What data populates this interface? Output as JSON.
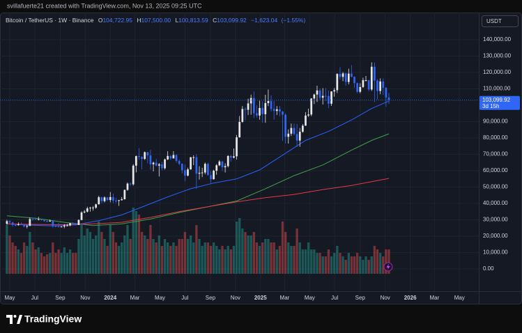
{
  "chart_data": {
    "type": "candlestick",
    "header": "svillafuerte21 created with TradingView.com, Nov 13, 2025 09:25 UTC",
    "legend": {
      "symbol": "Bitcoin / TetherUS · 1W · Binance",
      "fields": [
        {
          "key": "O",
          "value": 104722.95,
          "label": "104,722.95"
        },
        {
          "key": "H",
          "value": 107500,
          "label": "107,500.00"
        },
        {
          "key": "L",
          "value": 100813.59,
          "label": "100,813.59"
        },
        {
          "key": "C",
          "value": 103099.92,
          "label": "103,099.92"
        }
      ],
      "change": {
        "value": -1623.04,
        "label": "−1,623.04"
      },
      "change_percent": {
        "value": -1.55,
        "label": "(−1.55%)"
      }
    },
    "currency": "USDT",
    "brand": "TradingView",
    "up_color": "#e8e8e8",
    "down_color": "#2f66f5",
    "x": [
      0,
      1,
      2,
      3,
      4,
      5,
      6,
      7,
      8,
      9,
      10,
      11,
      12,
      13,
      14,
      15,
      16,
      17,
      18,
      19,
      20,
      21,
      22,
      23,
      24,
      25,
      26,
      27,
      28,
      29,
      30,
      31,
      32,
      33,
      34,
      35,
      36,
      37,
      38,
      39,
      40,
      41,
      42,
      43,
      44,
      45,
      46,
      47,
      48,
      49,
      50,
      51,
      52,
      53,
      54,
      55,
      56,
      57,
      58,
      59,
      60,
      61,
      62,
      63,
      64,
      65,
      66,
      67,
      68,
      69,
      70,
      71,
      72,
      73,
      74,
      75,
      76,
      77,
      78,
      79,
      80,
      81,
      82,
      83,
      84,
      85,
      86,
      87,
      88,
      89,
      90,
      91,
      92,
      93,
      94,
      95,
      96,
      97,
      98,
      99,
      100,
      101,
      102,
      103,
      104,
      105,
      106,
      107,
      108,
      109,
      110,
      111,
      112,
      113,
      114,
      115,
      116,
      117,
      118,
      119,
      120,
      121,
      122,
      123,
      124,
      125,
      126,
      127,
      128,
      129,
      130,
      131,
      132,
      133
    ],
    "open": [
      27600,
      29200,
      28400,
      26900,
      26750,
      27200,
      27100,
      25900,
      26300,
      30500,
      30450,
      30150,
      30300,
      29900,
      29200,
      29050,
      29400,
      26100,
      26000,
      25800,
      25900,
      26500,
      26550,
      27950,
      27900,
      26850,
      29900,
      34500,
      35000,
      37000,
      37400,
      37450,
      39450,
      43800,
      41400,
      43700,
      42100,
      43900,
      41700,
      41600,
      42000,
      42600,
      48300,
      52100,
      51700,
      63100,
      68900,
      68400,
      67200,
      71300,
      69300,
      63900,
      64900,
      63100,
      63900,
      61500,
      66900,
      69000,
      67500,
      69600,
      66000,
      64200,
      60300,
      57000,
      60800,
      68200,
      68200,
      58200,
      58700,
      58900,
      64200,
      57300,
      54800,
      60000,
      63300,
      65600,
      62100,
      62800,
      69000,
      68000,
      68800,
      80400,
      89800,
      97700,
      97200,
      101100,
      104400,
      95100,
      93700,
      98300,
      94500,
      101300,
      102600,
      97700,
      96500,
      97500,
      96100,
      94200,
      80700,
      82600,
      86100,
      82400,
      78400,
      83800,
      87500,
      93700,
      94300,
      104100,
      106500,
      109000,
      104600,
      105700,
      105600,
      100900,
      108400,
      109200,
      119100,
      117300,
      119400,
      114200,
      119300,
      117400,
      113500,
      108200,
      111100,
      115300,
      115300,
      109600,
      123500,
      115100,
      108700,
      114500,
      110600,
      104722.95
    ],
    "high": [
      30000,
      29800,
      28800,
      27500,
      28400,
      28400,
      27400,
      26800,
      31400,
      31300,
      31400,
      31800,
      30400,
      30000,
      29700,
      30200,
      29700,
      26800,
      28100,
      26100,
      27400,
      27500,
      28000,
      28600,
      28000,
      30300,
      35200,
      36000,
      38000,
      38000,
      38400,
      39800,
      44700,
      44000,
      44300,
      44000,
      47000,
      46000,
      43500,
      42200,
      43900,
      48500,
      52800,
      52900,
      64000,
      69200,
      73800,
      68900,
      71700,
      71400,
      72800,
      65500,
      67200,
      64700,
      65500,
      67400,
      71900,
      69500,
      71900,
      70000,
      66800,
      64500,
      63800,
      61800,
      68400,
      69400,
      70000,
      62700,
      61800,
      65000,
      64900,
      59800,
      60600,
      64000,
      66500,
      66000,
      64500,
      69400,
      69500,
      73600,
      81800,
      93400,
      99500,
      98800,
      104000,
      106500,
      108300,
      99900,
      102700,
      102300,
      106400,
      109600,
      106000,
      102500,
      99500,
      99500,
      96500,
      95000,
      85200,
      88800,
      88800,
      88500,
      86100,
      88500,
      95800,
      97900,
      104300,
      107100,
      111900,
      110200,
      110400,
      110500,
      108900,
      108500,
      110500,
      119500,
      123200,
      120200,
      119800,
      122300,
      124500,
      117600,
      113900,
      113400,
      116800,
      117900,
      115500,
      126200,
      126100,
      116000,
      116400,
      116400,
      111000,
      107500
    ],
    "low": [
      27000,
      27600,
      25800,
      26100,
      26500,
      26900,
      25400,
      24800,
      26200,
      29500,
      29900,
      29700,
      29500,
      28900,
      28600,
      28800,
      25200,
      25800,
      25400,
      25400,
      24900,
      26100,
      26000,
      27200,
      26500,
      26800,
      29700,
      34000,
      34500,
      35000,
      35600,
      36700,
      39400,
      40200,
      40600,
      41400,
      40700,
      40200,
      40300,
      38500,
      41800,
      42300,
      47700,
      50700,
      50900,
      59000,
      66700,
      60800,
      66600,
      64500,
      60700,
      59600,
      62700,
      56500,
      60200,
      60700,
      66500,
      66600,
      67500,
      64900,
      63400,
      58400,
      53500,
      56500,
      60600,
      63400,
      49000,
      54600,
      56100,
      57800,
      57200,
      52500,
      54600,
      57500,
      62700,
      59800,
      58900,
      62000,
      65500,
      67500,
      66800,
      80200,
      89300,
      90800,
      94000,
      94200,
      92200,
      92400,
      91200,
      89300,
      89300,
      99500,
      96100,
      91200,
      94000,
      93300,
      78200,
      76600,
      76600,
      81200,
      81600,
      74500,
      74600,
      83200,
      87400,
      92800,
      93300,
      100700,
      102000,
      103000,
      100400,
      102600,
      98200,
      99600,
      105200,
      107500,
      115700,
      114700,
      111900,
      112700,
      116900,
      110700,
      107300,
      107300,
      110600,
      114400,
      108600,
      108700,
      102000,
      103500,
      106700,
      106300,
      99000,
      100813.59
    ],
    "close": [
      29200,
      28400,
      26900,
      26750,
      27200,
      27100,
      25900,
      26300,
      30500,
      30450,
      30150,
      30300,
      29900,
      29200,
      29050,
      29400,
      26100,
      26000,
      25800,
      25900,
      26500,
      26550,
      27950,
      27900,
      26850,
      29900,
      34500,
      35000,
      37000,
      37400,
      37450,
      39450,
      43800,
      41400,
      43700,
      42100,
      43900,
      41700,
      41600,
      42000,
      42600,
      48300,
      52100,
      51700,
      63100,
      68900,
      68400,
      67200,
      71300,
      69300,
      63900,
      64900,
      63100,
      63900,
      61500,
      66900,
      69000,
      67500,
      69600,
      66000,
      64200,
      60300,
      57000,
      60800,
      68200,
      68200,
      58200,
      58700,
      58900,
      64200,
      57300,
      54800,
      60000,
      63300,
      65600,
      62100,
      62800,
      69000,
      68000,
      68800,
      80400,
      89800,
      97700,
      97200,
      101100,
      104400,
      95100,
      93700,
      98300,
      94500,
      101300,
      102600,
      97700,
      96500,
      97500,
      96100,
      94200,
      80700,
      82600,
      86100,
      82400,
      78400,
      83800,
      87500,
      93700,
      94300,
      104100,
      106500,
      109000,
      104600,
      105700,
      105600,
      100900,
      108400,
      109200,
      119100,
      117300,
      119400,
      114200,
      119300,
      117400,
      113500,
      108200,
      111100,
      115300,
      115300,
      109600,
      123500,
      115100,
      108700,
      114500,
      110600,
      104700,
      103099.92
    ],
    "volume": {
      "up_color": "#26a69a",
      "down_color": "#ef5350",
      "ylim": [
        0,
        375
      ],
      "values": [
        70,
        55,
        45,
        40,
        35,
        30,
        45,
        40,
        60,
        45,
        35,
        38,
        30,
        25,
        28,
        30,
        45,
        30,
        35,
        30,
        38,
        30,
        35,
        30,
        30,
        50,
        70,
        55,
        65,
        60,
        50,
        55,
        75,
        60,
        50,
        40,
        70,
        60,
        45,
        40,
        45,
        55,
        70,
        50,
        95,
        90,
        85,
        60,
        55,
        50,
        70,
        50,
        45,
        55,
        40,
        50,
        45,
        40,
        45,
        40,
        50,
        50,
        60,
        50,
        55,
        45,
        70,
        50,
        40,
        45,
        45,
        40,
        45,
        40,
        35,
        40,
        35,
        40,
        35,
        40,
        75,
        80,
        65,
        60,
        55,
        55,
        60,
        45,
        40,
        45,
        50,
        50,
        45,
        45,
        35,
        40,
        75,
        60,
        45,
        40,
        40,
        65,
        45,
        35,
        35,
        45,
        35,
        35,
        30,
        30,
        25,
        25,
        35,
        25,
        30,
        40,
        30,
        25,
        20,
        30,
        25,
        25,
        30,
        25,
        20,
        25,
        20,
        25,
        40,
        35,
        30,
        25,
        35,
        35
      ]
    },
    "moving_averages": [
      {
        "color": "#2962ff",
        "x": [
          0,
          8,
          16,
          24,
          32,
          40,
          48,
          56,
          64,
          72,
          80,
          88,
          96,
          104,
          112,
          120,
          127,
          133
        ],
        "values": [
          27500,
          26800,
          26300,
          27000,
          29500,
          33000,
          38500,
          44000,
          49000,
          52500,
          55000,
          60500,
          69500,
          78500,
          84000,
          91000,
          98000,
          102500
        ]
      },
      {
        "color": "#43a047",
        "x": [
          0,
          10,
          20,
          30,
          40,
          50,
          60,
          70,
          80,
          90,
          100,
          110,
          120,
          127,
          133
        ],
        "values": [
          32500,
          31000,
          28500,
          26500,
          27500,
          30500,
          34500,
          38000,
          41500,
          49000,
          57000,
          63500,
          72500,
          78500,
          82500
        ]
      },
      {
        "color": "#e53945",
        "x": [
          0,
          10,
          20,
          30,
          40,
          50,
          60,
          70,
          80,
          90,
          100,
          110,
          120,
          133
        ],
        "values": [
          27500,
          27200,
          27000,
          27500,
          28500,
          31500,
          35000,
          38000,
          41000,
          43500,
          45500,
          48500,
          51000,
          55300
        ]
      }
    ],
    "last_price": {
      "value": 103099.92,
      "label": "103,099.92"
    },
    "countdown": "3d 15h",
    "xlim": [
      -2.4,
      164.3
    ],
    "xticks": [
      {
        "value": 1,
        "label": "May"
      },
      {
        "value": 9.71,
        "label": "Jul"
      },
      {
        "value": 18.57,
        "label": "Sep"
      },
      {
        "value": 27.29,
        "label": "Nov"
      },
      {
        "value": 36,
        "label": "2024"
      },
      {
        "value": 44.57,
        "label": "Mar"
      },
      {
        "value": 53.29,
        "label": "May"
      },
      {
        "value": 62,
        "label": "Jul"
      },
      {
        "value": 70.86,
        "label": "Sep"
      },
      {
        "value": 79.57,
        "label": "Nov"
      },
      {
        "value": 88.29,
        "label": "2025"
      },
      {
        "value": 96.71,
        "label": "Mar"
      },
      {
        "value": 105.43,
        "label": "May"
      },
      {
        "value": 114.14,
        "label": "Jul"
      },
      {
        "value": 123,
        "label": "Sep"
      },
      {
        "value": 131.71,
        "label": "Nov"
      },
      {
        "value": 140.43,
        "label": "2026"
      },
      {
        "value": 148.86,
        "label": "Mar"
      },
      {
        "value": 157.57,
        "label": "May"
      }
    ],
    "ylim": [
      -13600,
      156600
    ],
    "yticks": [
      {
        "value": 0,
        "label": "0.00"
      },
      {
        "value": 10000,
        "label": "10,000.00"
      },
      {
        "value": 20000,
        "label": "20,000.00"
      },
      {
        "value": 30000,
        "label": "30,000.00"
      },
      {
        "value": 40000,
        "label": "40,000.00"
      },
      {
        "value": 50000,
        "label": "50,000.00"
      },
      {
        "value": 60000,
        "label": "60,000.00"
      },
      {
        "value": 70000,
        "label": "70,000.00"
      },
      {
        "value": 80000,
        "label": "80,000.00"
      },
      {
        "value": 90000,
        "label": "90,000.00"
      },
      {
        "value": 110000,
        "label": "110,000.00"
      },
      {
        "value": 120000,
        "label": "120,000.00"
      },
      {
        "value": 130000,
        "label": "130,000.00"
      },
      {
        "value": 140000,
        "label": "140,000.00"
      }
    ],
    "grid": true
  }
}
